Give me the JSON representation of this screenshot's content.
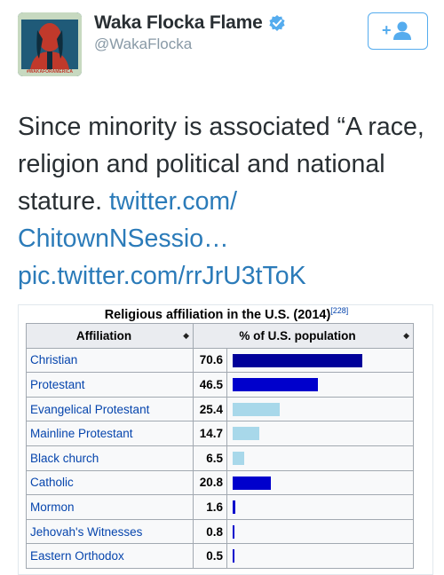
{
  "user": {
    "display_name": "Waka Flocka Flame",
    "handle": "@WakaFlocka",
    "avatar_caption": "#WAKAFORAMERICA"
  },
  "follow_button": {
    "label": "+👤"
  },
  "tweet": {
    "text_main": "Since minority is associated “A race, religion and political and national stature.",
    "link1": "twitter.com/ ChitownNSessio…",
    "link2": "pic.twitter.com/rrJrU3tToK"
  },
  "media": {
    "caption": "Religious affiliation in the U.S. (2014)",
    "caption_ref": "[228]",
    "table": {
      "headers": [
        "Affiliation",
        "% of U.S. population"
      ],
      "rows": [
        {
          "name": "Christian",
          "value": 70.6,
          "value_text": "70.6",
          "level": 1,
          "color": "#000099"
        },
        {
          "name": "Protestant",
          "value": 46.5,
          "value_text": "46.5",
          "level": 2,
          "color": "#0000cc"
        },
        {
          "name": "Evangelical Protestant",
          "value": 25.4,
          "value_text": "25.4",
          "level": 3,
          "color": "#a8d8ea"
        },
        {
          "name": "Mainline Protestant",
          "value": 14.7,
          "value_text": "14.7",
          "level": 3,
          "color": "#a8d8ea"
        },
        {
          "name": "Black church",
          "value": 6.5,
          "value_text": "6.5",
          "level": 3,
          "color": "#a8d8ea"
        },
        {
          "name": "Catholic",
          "value": 20.8,
          "value_text": "20.8",
          "level": 2,
          "color": "#0000cc"
        },
        {
          "name": "Mormon",
          "value": 1.6,
          "value_text": "1.6",
          "level": 2,
          "color": "#0000cc"
        },
        {
          "name": "Jehovah's Witnesses",
          "value": 0.8,
          "value_text": "0.8",
          "level": 2,
          "color": "#0000cc"
        },
        {
          "name": "Eastern Orthodox",
          "value": 0.5,
          "value_text": "0.5",
          "level": 2,
          "color": "#0000cc"
        }
      ]
    }
  },
  "colors": {
    "link": "#2b7bb9",
    "follow_accent": "#55acee",
    "verified": "#55acee"
  }
}
